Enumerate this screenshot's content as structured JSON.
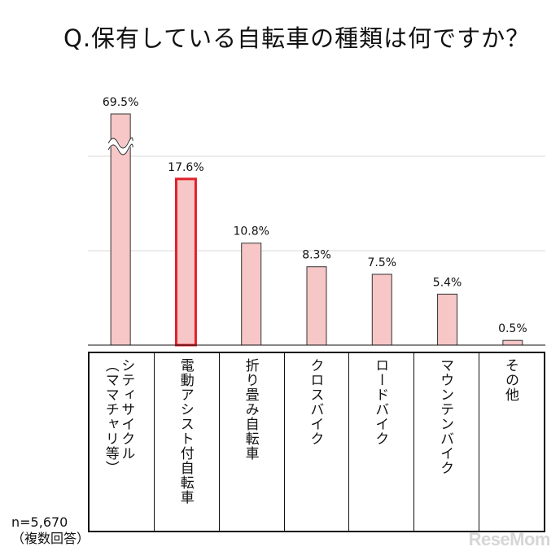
{
  "title": "Q.保有している自転車の種類は何ですか？",
  "chart_data": {
    "type": "bar",
    "title": "Q.保有している自転車の種類は何ですか？",
    "categories": [
      "シティサイクル\n（ママチャリ等）",
      "電動アシスト付自転車",
      "折り畳み自転車",
      "クロスバイク",
      "ロードバイク",
      "マウンテンバイク",
      "その他"
    ],
    "values": [
      69.5,
      17.6,
      10.8,
      8.3,
      7.5,
      5.4,
      0.5
    ],
    "value_labels": [
      "69.5%",
      "17.6%",
      "10.8%",
      "8.3%",
      "7.5%",
      "5.4%",
      "0.5%"
    ],
    "unit": "%",
    "axis_break_on_first_bar": true,
    "highlighted_category_index": 1,
    "grid": true,
    "colors": {
      "bar_fill": "#f7c6c6",
      "bar_stroke": "#333333",
      "highlight_stroke": "#e0202a",
      "grid": "#d8d8d8"
    }
  },
  "sample": {
    "n": "n=5,670",
    "note": "（複数回答）"
  },
  "brand": "ReseMom"
}
